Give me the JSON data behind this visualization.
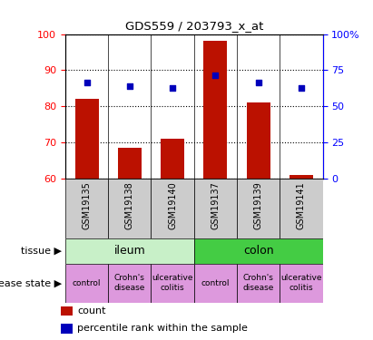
{
  "title": "GDS559 / 203793_x_at",
  "samples": [
    "GSM19135",
    "GSM19138",
    "GSM19140",
    "GSM19137",
    "GSM19139",
    "GSM19141"
  ],
  "bar_values": [
    82,
    68.5,
    71,
    98,
    81,
    61
  ],
  "dot_values": [
    86.5,
    85.5,
    85,
    88.5,
    86.5,
    85
  ],
  "bar_color": "#bb1100",
  "dot_color": "#0000bb",
  "ylim_left": [
    60,
    100
  ],
  "ylim_right": [
    0,
    100
  ],
  "yticks_left": [
    60,
    70,
    80,
    90,
    100
  ],
  "yticks_right": [
    0,
    25,
    50,
    75,
    100
  ],
  "ytick_labels_right": [
    "0",
    "25",
    "50",
    "75",
    "100%"
  ],
  "tissue_data": [
    {
      "text": "ileum",
      "start": 0,
      "end": 2,
      "color": "#c8f0c8"
    },
    {
      "text": "colon",
      "start": 3,
      "end": 5,
      "color": "#44cc44"
    }
  ],
  "disease_data": [
    {
      "text": "control",
      "col": 0
    },
    {
      "text": "Crohn's\ndisease",
      "col": 1
    },
    {
      "text": "ulcerative\ncolitis",
      "col": 2
    },
    {
      "text": "control",
      "col": 3
    },
    {
      "text": "Crohn's\ndisease",
      "col": 4
    },
    {
      "text": "ulcerative\ncolitis",
      "col": 5
    }
  ],
  "disease_color": "#dd99dd",
  "row_label_tissue": "tissue",
  "row_label_disease": "disease state",
  "legend_count": "count",
  "legend_pct": "percentile rank within the sample",
  "chart_bg": "#ffffff",
  "sample_area_bg": "#cccccc",
  "grid_color": "#000000"
}
